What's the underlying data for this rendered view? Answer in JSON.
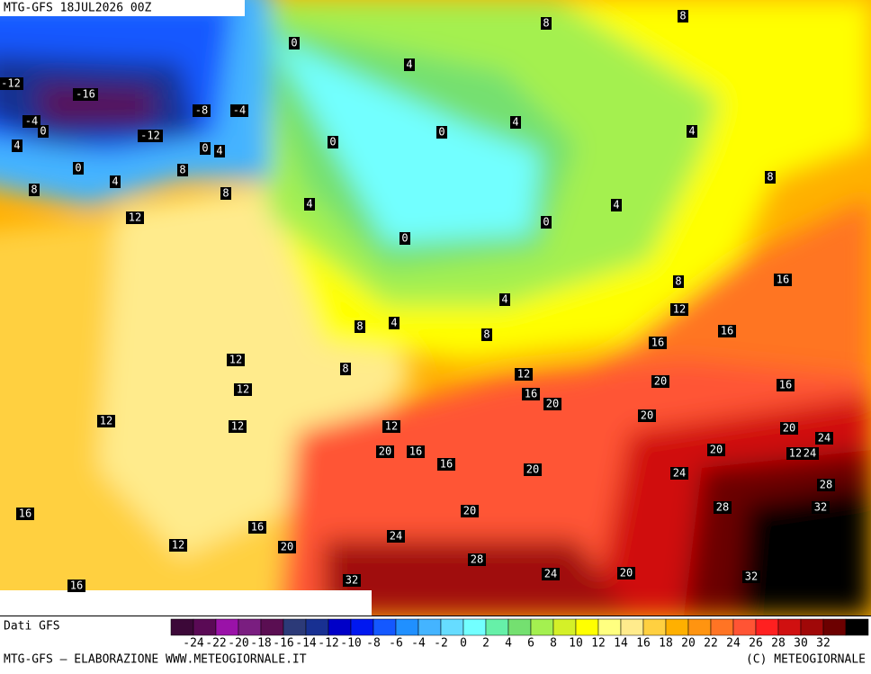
{
  "header": {
    "title": "MTG-GFS 18JUL2026 00Z"
  },
  "map": {
    "labels": [
      8,
      8,
      0,
      4,
      -12,
      -16,
      -8,
      -4,
      -4,
      0,
      -12,
      4,
      0,
      0,
      4,
      4,
      0,
      4,
      0,
      8,
      4,
      8,
      8,
      8,
      4,
      4,
      12,
      0,
      0,
      16,
      8,
      4,
      12,
      8,
      4,
      8,
      16,
      16,
      12,
      8,
      12,
      12,
      16,
      20,
      16,
      20,
      12,
      20,
      12,
      12,
      20,
      24,
      20,
      16,
      12,
      24,
      20,
      16,
      20,
      24,
      28,
      28,
      32,
      16,
      20,
      16,
      24,
      12,
      20,
      28,
      32,
      24,
      20,
      32,
      16
    ]
  },
  "legend": {
    "source": "Dati GFS",
    "colors": [
      "#3c0838",
      "#5a0a55",
      "#9a12a8",
      "#7a1e80",
      "#5a0e52",
      "#2c3a78",
      "#183092",
      "#0000c8",
      "#0018f0",
      "#1458ff",
      "#2090ff",
      "#44b4ff",
      "#66dcff",
      "#72ffff",
      "#66f0a8",
      "#74e070",
      "#a4f050",
      "#d4f028",
      "#ffff00",
      "#ffff80",
      "#ffeb8c",
      "#ffd040",
      "#ffb000",
      "#ff9410",
      "#ff7424",
      "#ff5434",
      "#ff2020",
      "#d01010",
      "#a00808",
      "#6c0000",
      "#000000"
    ],
    "ticks": [
      -24,
      -22,
      -20,
      -18,
      -16,
      -14,
      -12,
      -10,
      -8,
      -6,
      -4,
      -2,
      0,
      2,
      4,
      6,
      8,
      10,
      12,
      14,
      16,
      18,
      20,
      22,
      24,
      26,
      28,
      30,
      32
    ]
  },
  "footer": {
    "left": "MTG-GFS — ELABORAZIONE WWW.METEOGIORNALE.IT",
    "right": "(C) METEOGIORNALE"
  }
}
